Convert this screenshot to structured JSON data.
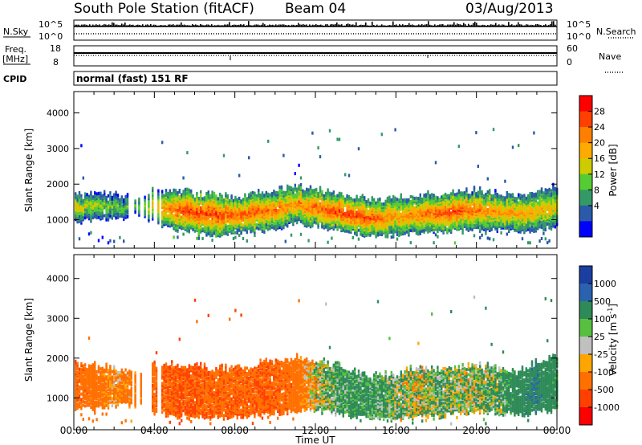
{
  "header": {
    "title": "South Pole Station (fitACF)",
    "beam": "Beam 04",
    "date": "03/Aug/2013"
  },
  "nsky_panel": {
    "left_label": "N.Sky",
    "left_top": "10^5",
    "left_bottom": "10^0",
    "right_top": "10^5",
    "right_bottom": "10^0",
    "right_label": "N.Search"
  },
  "freq_panel": {
    "label_line1": "Freq.",
    "label_line2": "[MHz]",
    "left_top": "18",
    "left_bottom": "8",
    "right_top": "60",
    "right_bottom": "0",
    "right_label": "Nave"
  },
  "cpid_panel": {
    "label": "CPID",
    "text": "normal (fast) 151 RF"
  },
  "power_panel": {
    "ylabel": "Slant Range [km]",
    "colorbar_label": "Power [dB]",
    "colorbar_ticks": [
      "28",
      "24",
      "20",
      "16",
      "12",
      "8",
      "4"
    ],
    "colorbar_colors": [
      "#ff0000",
      "#ff4000",
      "#ff8000",
      "#ffaa00",
      "#cccc00",
      "#55cc33",
      "#339966",
      "#2a5aa8",
      "#0000ff"
    ]
  },
  "velocity_panel": {
    "ylabel": "Slant Range [km]",
    "colorbar_label": "Velocity [m s",
    "colorbar_label_exp": "-1",
    "colorbar_label_end": "]",
    "colorbar_ticks": [
      "1000",
      "500",
      "100",
      "25",
      "-25",
      "-100",
      "-500",
      "-1000"
    ],
    "colorbar_colors": [
      "#1a3fa0",
      "#2a62b0",
      "#2e8b57",
      "#58c040",
      "#c0c0c0",
      "#ffa500",
      "#ff7000",
      "#ff4000",
      "#ff0000"
    ]
  },
  "xaxis": {
    "label": "Time UT",
    "ticks": [
      "00:00",
      "04:00",
      "08:00",
      "12:00",
      "16:00",
      "20:00",
      "00:00"
    ]
  },
  "chart_data": [
    {
      "type": "heatmap",
      "title": "Power",
      "xlabel": "Time UT",
      "ylabel": "Slant Range [km]",
      "xlim": [
        0,
        24
      ],
      "ylim": [
        200,
        4600
      ],
      "yticks": [
        1000,
        2000,
        3000,
        4000
      ],
      "colorbar_range": [
        0,
        32
      ],
      "colorbar_unit": "dB",
      "echo_band": {
        "hours": [
          0,
          1,
          2,
          3,
          4,
          5,
          6,
          7,
          8,
          9,
          10,
          11,
          12,
          13,
          14,
          15,
          16,
          17,
          18,
          19,
          20,
          21,
          22,
          23,
          24
        ],
        "low_km": [
          900,
          1000,
          1000,
          1100,
          900,
          700,
          600,
          550,
          600,
          650,
          700,
          900,
          800,
          700,
          600,
          500,
          550,
          600,
          600,
          700,
          700,
          700,
          650,
          700,
          800
        ],
        "high_km": [
          1700,
          1700,
          1650,
          1600,
          1800,
          1800,
          1700,
          1650,
          1600,
          1700,
          1800,
          1900,
          1800,
          1700,
          1600,
          1500,
          1600,
          1650,
          1700,
          1700,
          1800,
          1700,
          1600,
          1800,
          1900
        ],
        "peak_dB": [
          18,
          16,
          14,
          12,
          20,
          26,
          28,
          28,
          26,
          26,
          24,
          22,
          26,
          28,
          28,
          26,
          22,
          24,
          26,
          28,
          24,
          22,
          22,
          20,
          18
        ]
      }
    },
    {
      "type": "heatmap",
      "title": "Velocity",
      "xlabel": "Time UT",
      "ylabel": "Slant Range [km]",
      "xlim": [
        0,
        24
      ],
      "ylim": [
        200,
        4600
      ],
      "yticks": [
        1000,
        2000,
        3000,
        4000
      ],
      "colorbar_range": [
        -1000,
        1000
      ],
      "colorbar_unit": "m s-1",
      "echo_band": {
        "hours": [
          0,
          1,
          2,
          3,
          4,
          5,
          6,
          7,
          8,
          9,
          10,
          11,
          12,
          13,
          14,
          15,
          16,
          17,
          18,
          19,
          20,
          21,
          22,
          23,
          24
        ],
        "low_km": [
          700,
          700,
          800,
          800,
          600,
          500,
          500,
          500,
          500,
          550,
          600,
          650,
          700,
          600,
          500,
          450,
          450,
          500,
          500,
          600,
          600,
          600,
          550,
          600,
          700
        ],
        "high_km": [
          1800,
          1800,
          1700,
          1600,
          1800,
          1800,
          1750,
          1700,
          1700,
          1800,
          1900,
          2000,
          1900,
          1800,
          1600,
          1500,
          1600,
          1700,
          1700,
          1700,
          1800,
          1700,
          1600,
          1900,
          2000
        ],
        "velocity": [
          -400,
          -300,
          -150,
          -200,
          -400,
          -500,
          -500,
          -450,
          -400,
          -450,
          -450,
          -300,
          0,
          150,
          200,
          150,
          80,
          0,
          100,
          60,
          40,
          100,
          300,
          400,
          200
        ]
      }
    }
  ]
}
